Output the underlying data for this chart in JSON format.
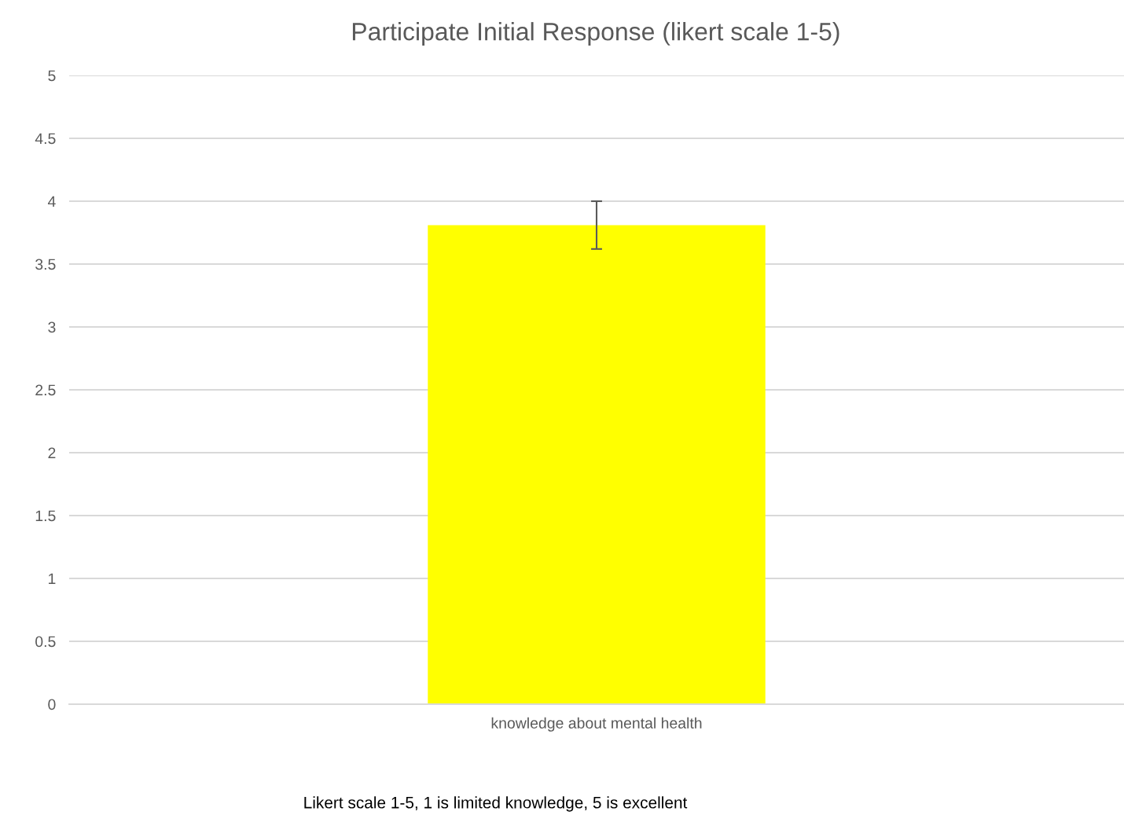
{
  "chart_data": {
    "type": "bar",
    "title": "Participate Initial Response (likert scale 1-5)",
    "categories": [
      "knowledge about mental health"
    ],
    "values": [
      3.81
    ],
    "errors": [
      0.19
    ],
    "color": "#ffff00",
    "ylim": [
      0,
      5
    ],
    "yticks": [
      0,
      0.5,
      1,
      1.5,
      2,
      2.5,
      3,
      3.5,
      4,
      4.5,
      5
    ],
    "grid": "y",
    "legend": false,
    "annotations": [
      "Likert scale 1-5, 1 is limited knowledge, 5 is excellent"
    ]
  }
}
